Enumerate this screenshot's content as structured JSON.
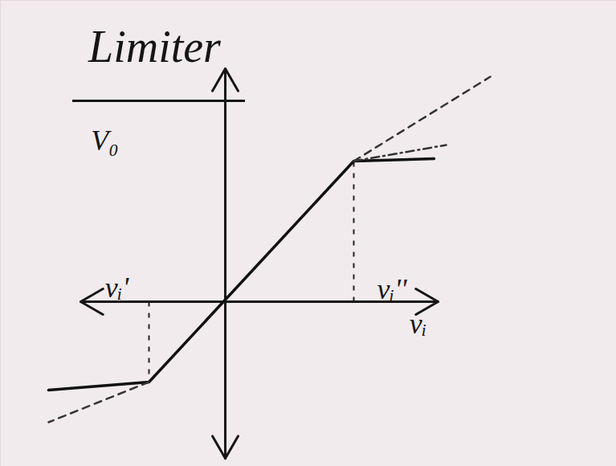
{
  "chart_data": {
    "type": "line",
    "title": "Limiter",
    "xlim": [
      -5.6,
      9.74
    ],
    "ylim": [
      -4.1,
      7.5
    ],
    "tick_labels": false,
    "grid": false,
    "axis_arrows": [
      {
        "x1": -3.6,
        "y1": 0,
        "x2": 5.3,
        "y2": 0
      },
      {
        "x1": 0,
        "y1": -3.9,
        "x2": 0,
        "y2": 5.8
      }
    ],
    "series": [
      {
        "color": "#111111",
        "line_style": "solid",
        "x": [
          -4.4,
          -1.9,
          3.2,
          5.2
        ],
        "values": [
          -2.2,
          -2.0,
          3.5,
          3.56
        ]
      },
      {
        "color": "#333333",
        "line_style": "dashed",
        "x": [
          3.2,
          6.6
        ],
        "values": [
          3.5,
          5.6
        ]
      },
      {
        "color": "#333333",
        "line_style": "dashdot",
        "x": [
          3.2,
          5.5
        ],
        "values": [
          3.5,
          3.9
        ]
      },
      {
        "color": "#333333",
        "line_style": "dashed",
        "x": [
          -1.9,
          -4.4
        ],
        "values": [
          -2.0,
          -3.0
        ]
      }
    ],
    "guides": [
      {
        "x": -1.9,
        "y1": 0,
        "y2": -2.0
      },
      {
        "x": 3.2,
        "y1": 0,
        "y2": 3.5
      }
    ],
    "annotations": [
      {
        "text": "V₀",
        "x": -3.0,
        "y": 4.0
      },
      {
        "text": "vᵢ'",
        "x": -2.7,
        "y": 0.35
      },
      {
        "text": "vᵢ''",
        "x": 4.15,
        "y": 0.3
      },
      {
        "text": "vᵢ",
        "x": 4.8,
        "y": -0.55
      }
    ]
  }
}
